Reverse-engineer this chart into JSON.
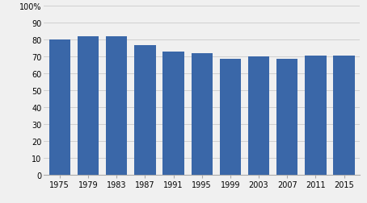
{
  "categories": [
    "1975",
    "1979",
    "1983",
    "1987",
    "1991",
    "1995",
    "1999",
    "2003",
    "2007",
    "2011",
    "2015"
  ],
  "values": [
    80.0,
    81.5,
    81.5,
    76.5,
    72.5,
    71.9,
    68.3,
    69.7,
    68.2,
    70.5,
    70.1
  ],
  "bar_color": "#3A67A8",
  "ylim": [
    0,
    100
  ],
  "yticks": [
    0,
    10,
    20,
    30,
    40,
    50,
    60,
    70,
    80,
    90,
    100
  ],
  "ytick_labels": [
    "0",
    "10",
    "20",
    "30",
    "40",
    "50",
    "60",
    "70",
    "80",
    "90",
    "100%"
  ],
  "grid_color": "#d0d0d0",
  "background_color": "#f0f0f0",
  "bar_edge_color": "none"
}
